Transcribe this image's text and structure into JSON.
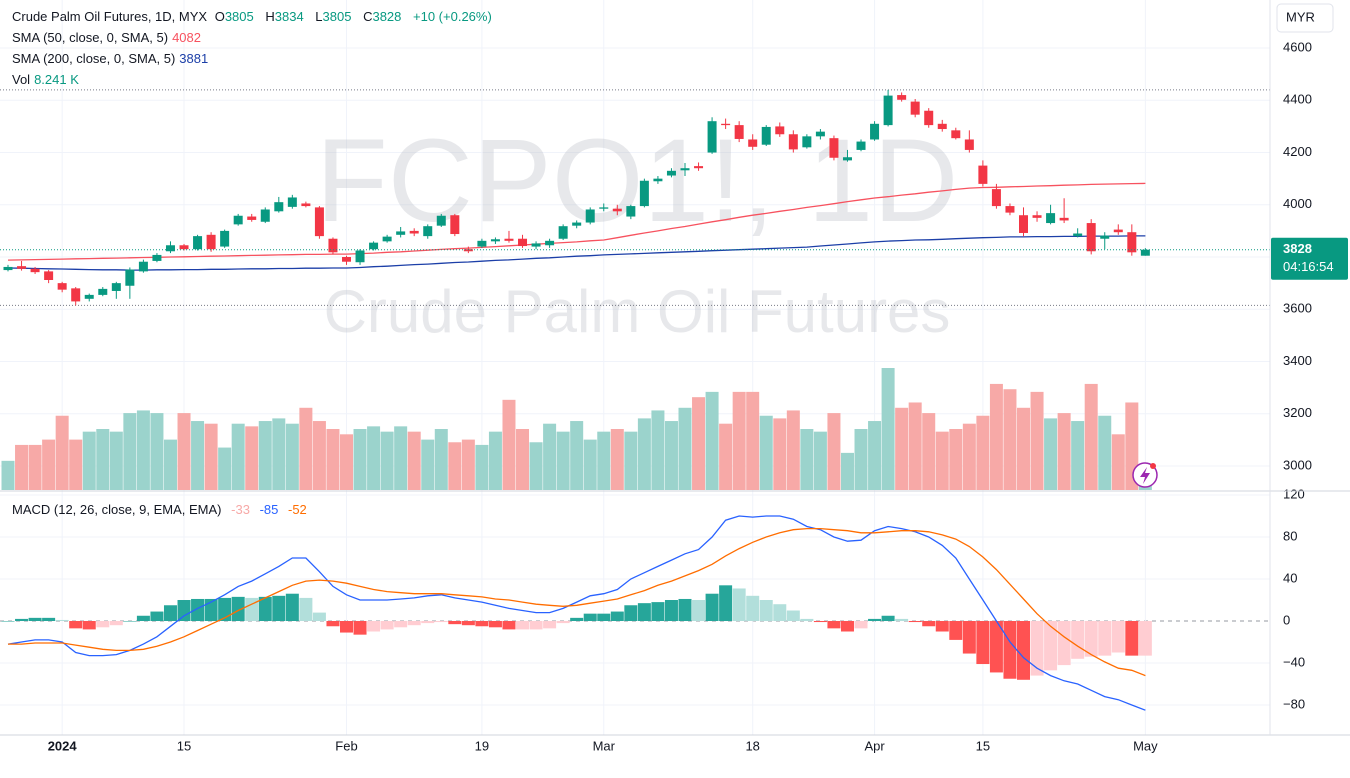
{
  "chart_data": [
    {
      "type": "candlestick",
      "title": "Crude Palm Oil Futures, 1D, MYX",
      "watermark": "FCPO1!, 1D",
      "subtitle": "Crude Palm Oil Futures",
      "currency": "MYR",
      "countdown": "04:16:54",
      "ohlc_prefixes": [
        "O",
        "H",
        "L",
        "C"
      ],
      "change": "+10 (+0.26%)",
      "up_color": "#089981",
      "down_color": "#f23645",
      "categories": [
        null,
        null,
        null,
        null,
        "2024",
        null,
        null,
        null,
        null,
        null,
        null,
        null,
        null,
        "15",
        null,
        null,
        null,
        null,
        null,
        null,
        null,
        null,
        null,
        null,
        null,
        "Feb",
        null,
        null,
        null,
        null,
        null,
        null,
        null,
        null,
        null,
        "19",
        null,
        null,
        null,
        null,
        null,
        null,
        null,
        null,
        "Mar",
        null,
        null,
        null,
        null,
        null,
        null,
        null,
        null,
        null,
        null,
        "18",
        null,
        null,
        null,
        null,
        null,
        null,
        null,
        null,
        "Apr",
        null,
        null,
        null,
        null,
        null,
        null,
        null,
        "15",
        null,
        null,
        null,
        null,
        null,
        null,
        null,
        null,
        null,
        null,
        null,
        "May"
      ],
      "open": [
        3750,
        3765,
        3755,
        3745,
        3700,
        3680,
        3640,
        3655,
        3670,
        3690,
        3745,
        3785,
        3822,
        3845,
        3830,
        3885,
        3840,
        3925,
        3955,
        3935,
        3975,
        3992,
        4005,
        3990,
        3870,
        3800,
        3780,
        3830,
        3860,
        3885,
        3900,
        3880,
        3920,
        3960,
        3830,
        3840,
        3860,
        3870,
        3870,
        3840,
        3845,
        3870,
        3920,
        3932,
        3985,
        3985,
        3955,
        3995,
        4090,
        4112,
        4132,
        4148,
        4200,
        4310,
        4305,
        4250,
        4230,
        4300,
        4270,
        4220,
        4262,
        4255,
        4170,
        4210,
        4250,
        4305,
        4420,
        4395,
        4360,
        4310,
        4285,
        4250,
        4150,
        4060,
        3995,
        3960,
        3960,
        3930,
        3950,
        3880,
        3930,
        3870,
        3905,
        3895,
        3805
      ],
      "high": [
        3770,
        3785,
        3762,
        3750,
        3705,
        3685,
        3660,
        3685,
        3705,
        3760,
        3790,
        3815,
        3860,
        3850,
        3885,
        3895,
        3905,
        3965,
        3965,
        3990,
        4030,
        4038,
        4012,
        3995,
        3875,
        3805,
        3830,
        3860,
        3885,
        3915,
        3910,
        3925,
        3965,
        3965,
        3840,
        3870,
        3875,
        3900,
        3885,
        3860,
        3870,
        3925,
        3940,
        3990,
        4005,
        4000,
        4000,
        4100,
        4110,
        4140,
        4160,
        4162,
        4335,
        4330,
        4320,
        4270,
        4305,
        4315,
        4285,
        4270,
        4290,
        4265,
        4210,
        4250,
        4320,
        4440,
        4430,
        4405,
        4370,
        4325,
        4295,
        4285,
        4170,
        4080,
        4005,
        3990,
        3975,
        4000,
        4025,
        3910,
        3945,
        3895,
        3925,
        3925,
        3834
      ],
      "low": [
        3745,
        3748,
        3735,
        3700,
        3665,
        3615,
        3630,
        3650,
        3640,
        3640,
        3740,
        3780,
        3815,
        3825,
        3825,
        3820,
        3835,
        3920,
        3935,
        3930,
        3970,
        3985,
        3990,
        3870,
        3810,
        3770,
        3770,
        3825,
        3855,
        3875,
        3880,
        3870,
        3915,
        3880,
        3815,
        3835,
        3850,
        3855,
        3835,
        3830,
        3835,
        3865,
        3910,
        3925,
        3975,
        3960,
        3945,
        3990,
        4080,
        4105,
        4110,
        4130,
        4195,
        4290,
        4240,
        4210,
        4225,
        4260,
        4200,
        4215,
        4250,
        4170,
        4165,
        4205,
        4245,
        4300,
        4395,
        4335,
        4295,
        4280,
        4250,
        4200,
        4070,
        3985,
        3960,
        3880,
        3935,
        3925,
        3930,
        3875,
        3810,
        3830,
        3885,
        3805,
        3805
      ],
      "close": [
        3762,
        3755,
        3742,
        3712,
        3675,
        3630,
        3655,
        3678,
        3700,
        3752,
        3782,
        3808,
        3845,
        3830,
        3880,
        3830,
        3900,
        3958,
        3942,
        3982,
        4010,
        4028,
        3995,
        3880,
        3818,
        3782,
        3825,
        3855,
        3878,
        3898,
        3890,
        3918,
        3958,
        3888,
        3822,
        3862,
        3868,
        3862,
        3842,
        3852,
        3862,
        3918,
        3932,
        3982,
        3990,
        3975,
        3995,
        4092,
        4100,
        4130,
        4140,
        4140,
        4320,
        4305,
        4252,
        4222,
        4298,
        4270,
        4212,
        4262,
        4280,
        4180,
        4182,
        4242,
        4310,
        4418,
        4402,
        4345,
        4305,
        4290,
        4255,
        4210,
        4080,
        3995,
        3970,
        3892,
        3950,
        3968,
        3940,
        3890,
        3822,
        3882,
        3895,
        3818,
        3828
      ],
      "series": [
        {
          "name": "SMA (50, close, 0, SMA, 5)",
          "color": "#f7525f",
          "values": [
            3788,
            3789,
            3790,
            3791,
            3792,
            3793,
            3794,
            3795,
            3796,
            3797,
            3798,
            3799,
            3800,
            3801,
            3802,
            3803,
            3804,
            3805,
            3806,
            3807,
            3808,
            3809,
            3810,
            3810,
            3811,
            3811,
            3813,
            3815,
            3818,
            3820,
            3823,
            3826,
            3829,
            3832,
            3834,
            3837,
            3840,
            3843,
            3846,
            3849,
            3852,
            3855,
            3858,
            3862,
            3865,
            3874,
            3883,
            3892,
            3900,
            3909,
            3917,
            3926,
            3935,
            3943,
            3952,
            3960,
            3967,
            3975,
            3982,
            3990,
            3997,
            4004,
            4012,
            4019,
            4026,
            4031,
            4037,
            4042,
            4048,
            4053,
            4059,
            4064,
            4066,
            4067,
            4069,
            4070,
            4072,
            4073,
            4075,
            4076,
            4078,
            4079,
            4080,
            4081,
            4082
          ]
        },
        {
          "name": "SMA (200, close, 0, SMA, 5)",
          "color": "#1c3fa8",
          "values": [
            3758,
            3757,
            3756,
            3755,
            3754,
            3753,
            3752,
            3751,
            3751,
            3750,
            3750,
            3751,
            3751,
            3752,
            3752,
            3753,
            3753,
            3754,
            3755,
            3755,
            3756,
            3756,
            3757,
            3757,
            3758,
            3758,
            3760,
            3763,
            3765,
            3768,
            3771,
            3773,
            3776,
            3779,
            3781,
            3784,
            3787,
            3789,
            3792,
            3795,
            3797,
            3800,
            3803,
            3805,
            3808,
            3810,
            3812,
            3814,
            3816,
            3818,
            3820,
            3822,
            3824,
            3826,
            3828,
            3830,
            3832,
            3834,
            3836,
            3838,
            3842,
            3846,
            3850,
            3854,
            3858,
            3861,
            3863,
            3865,
            3866,
            3868,
            3870,
            3872,
            3874,
            3875,
            3877,
            3877,
            3878,
            3878,
            3879,
            3879,
            3880,
            3880,
            3880,
            3881,
            3881
          ]
        }
      ],
      "volume": {
        "name": "Vol",
        "values": [
          11,
          17,
          17,
          19,
          28,
          19,
          22,
          23,
          22,
          29,
          30,
          29,
          19,
          29,
          26,
          25,
          16,
          25,
          24,
          26,
          27,
          25,
          31,
          26,
          23,
          21,
          23,
          24,
          22,
          24,
          22,
          19,
          23,
          18,
          19,
          17,
          22,
          34,
          23,
          18,
          25,
          22,
          26,
          19,
          22,
          23,
          22,
          27,
          30,
          26,
          31,
          35,
          37,
          25,
          37,
          37,
          28,
          27,
          30,
          23,
          22,
          29,
          14,
          23,
          26,
          46,
          31,
          33,
          29,
          22,
          23,
          25,
          28,
          40,
          38,
          31,
          37,
          27,
          29,
          26,
          40,
          28,
          21,
          33,
          8.241
        ],
        "value_labels": [
          null,
          null,
          null,
          null,
          null,
          null,
          null,
          null,
          null,
          null,
          null,
          null,
          null,
          null,
          null,
          null,
          null,
          null,
          null,
          null,
          null,
          null,
          null,
          null,
          null,
          null,
          null,
          null,
          null,
          null,
          null,
          null,
          null,
          null,
          null,
          null,
          null,
          null,
          null,
          null,
          null,
          null,
          null,
          null,
          null,
          null,
          null,
          null,
          null,
          null,
          null,
          null,
          null,
          null,
          null,
          null,
          null,
          null,
          null,
          null,
          null,
          null,
          null,
          null,
          null,
          null,
          null,
          null,
          null,
          null,
          null,
          null,
          null,
          null,
          null,
          null,
          null,
          null,
          null,
          null,
          null,
          null,
          null,
          null,
          "8.241 K"
        ]
      },
      "ylim": [
        2908,
        4784
      ],
      "yticks": [
        3000,
        3200,
        3400,
        3600,
        3800,
        4000,
        4200,
        4400,
        4600
      ],
      "grid": true
    },
    {
      "type": "macd",
      "title": "MACD (12, 26, close, 9, EMA, EMA)",
      "histogram": {
        "values": [
          0,
          2,
          3,
          3,
          1,
          -7,
          -8,
          -6,
          -4,
          0,
          5,
          9,
          15,
          20,
          21,
          21,
          22,
          23,
          22,
          23,
          24,
          26,
          22,
          8,
          -5,
          -11,
          -13,
          -10,
          -8,
          -6,
          -4,
          -2,
          -1,
          -3,
          -4,
          -5,
          -6,
          -8,
          -8,
          -8,
          -7,
          -2,
          3,
          7,
          7,
          9,
          15,
          17,
          18,
          20,
          21,
          20,
          26,
          34,
          31,
          24,
          20,
          16,
          10,
          2,
          -1,
          -7,
          -10,
          -7,
          2,
          5,
          2,
          -1,
          -5,
          -10,
          -18,
          -31,
          -41,
          -49,
          -55,
          -56,
          -52,
          -47,
          -42,
          -36,
          -34,
          -33,
          -30,
          -33,
          -33
        ],
        "color": "#f7a9a7"
      },
      "macd": {
        "color": "#2962ff",
        "values": [
          -22,
          -20,
          -18,
          -18,
          -20,
          -30,
          -33,
          -33,
          -32,
          -28,
          -22,
          -15,
          -5,
          5,
          12,
          18,
          25,
          33,
          38,
          45,
          52,
          60,
          60,
          47,
          33,
          25,
          20,
          20,
          20,
          21,
          22,
          24,
          25,
          22,
          20,
          18,
          15,
          12,
          10,
          8,
          8,
          12,
          18,
          24,
          26,
          30,
          40,
          46,
          52,
          58,
          64,
          68,
          80,
          96,
          100,
          99,
          100,
          100,
          97,
          90,
          87,
          80,
          76,
          77,
          86,
          90,
          88,
          85,
          80,
          72,
          60,
          40,
          20,
          0,
          -20,
          -35,
          -45,
          -52,
          -57,
          -60,
          -66,
          -72,
          -75,
          -80,
          -85
        ]
      },
      "signal": {
        "color": "#ff6d00",
        "values": [
          -22,
          -22,
          -21,
          -21,
          -21,
          -23,
          -25,
          -27,
          -28,
          -28,
          -27,
          -24,
          -20,
          -15,
          -9,
          -3,
          3,
          10,
          16,
          22,
          28,
          34,
          38,
          39,
          38,
          36,
          33,
          30,
          28,
          27,
          26,
          26,
          26,
          25,
          24,
          23,
          21,
          20,
          18,
          16,
          15,
          14,
          15,
          17,
          19,
          21,
          25,
          29,
          34,
          38,
          43,
          48,
          54,
          62,
          69,
          75,
          80,
          84,
          87,
          88,
          88,
          87,
          86,
          84,
          84,
          85,
          86,
          86,
          85,
          82,
          78,
          71,
          61,
          49,
          35,
          21,
          7,
          -5,
          -15,
          -24,
          -32,
          -39,
          -45,
          -47,
          -52
        ]
      },
      "ylim": [
        -108.6,
        122.9
      ],
      "yticks": [
        120,
        80,
        40,
        0,
        {
          "value": -40,
          "label": "−40"
        },
        {
          "value": -80,
          "label": "−80"
        }
      ]
    }
  ]
}
